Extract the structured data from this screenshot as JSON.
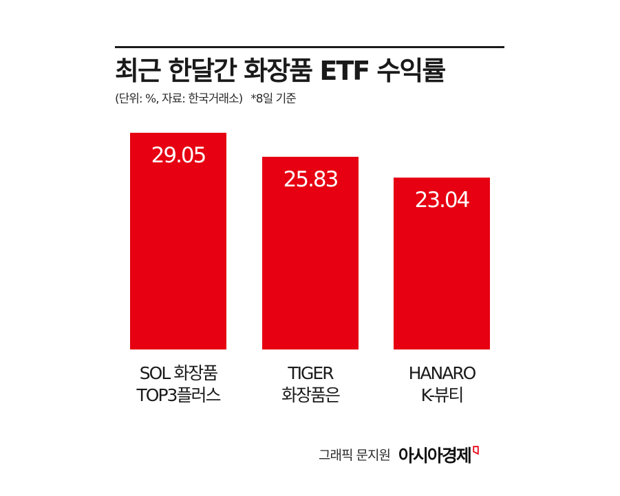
{
  "header": {
    "title": "최근 한달간 화장품 ETF 수익률",
    "unit_note": "(단위: %, 자료: 한국거래소)",
    "date_note": "*8일 기준"
  },
  "chart_data": {
    "type": "bar",
    "categories": [
      [
        "SOL 화장품",
        "TOP3플러스"
      ],
      [
        "TIGER",
        "화장품은"
      ],
      [
        "HANARO",
        "K-뷰티"
      ]
    ],
    "values": [
      29.05,
      25.83,
      23.04
    ],
    "value_labels": [
      "29.05",
      "25.83",
      "23.04"
    ],
    "ylim": [
      0,
      30.53
    ],
    "grid": false,
    "bar_color": "#e60012"
  },
  "footer": {
    "credit": "그래픽 문지원",
    "brand": "아시아경제"
  },
  "colors": {
    "text": "#1a1a1a",
    "rule": "#1a1a1a",
    "brand_accent": "#e60012"
  }
}
